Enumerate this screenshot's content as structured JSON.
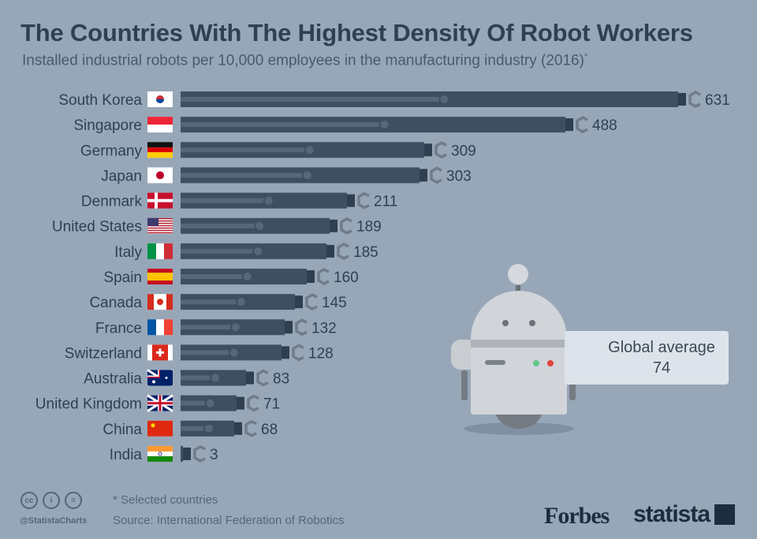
{
  "chart_data": {
    "type": "bar",
    "orientation": "horizontal",
    "title": "The Countries With The Highest Density Of Robot Workers",
    "subtitle": "Installed industrial robots per 10,000 employees in the manufacturing industry (2016)",
    "subtitle_mark": "*",
    "categories": [
      "South Korea",
      "Singapore",
      "Germany",
      "Japan",
      "Denmark",
      "United States",
      "Italy",
      "Spain",
      "Canada",
      "France",
      "Switzerland",
      "Australia",
      "United Kingdom",
      "China",
      "India"
    ],
    "values": [
      631,
      488,
      309,
      303,
      211,
      189,
      185,
      160,
      145,
      132,
      128,
      83,
      71,
      68,
      3
    ],
    "flag_icons": [
      "south-korea-flag-icon",
      "singapore-flag-icon",
      "germany-flag-icon",
      "japan-flag-icon",
      "denmark-flag-icon",
      "united-states-flag-icon",
      "italy-flag-icon",
      "spain-flag-icon",
      "canada-flag-icon",
      "france-flag-icon",
      "switzerland-flag-icon",
      "australia-flag-icon",
      "united-kingdom-flag-icon",
      "china-flag-icon",
      "india-flag-icon"
    ],
    "annotation": {
      "label": "Global average",
      "value": "74"
    },
    "xlim": [
      0,
      631
    ],
    "grid": false,
    "bar_color": "#3d4f61",
    "background_color": "#97a7b8"
  },
  "footer": {
    "note": "* Selected countries",
    "source": "Source: International Federation of Robotics",
    "handle": "@StatistaCharts",
    "license_icons": [
      "cc-icon",
      "by-icon",
      "nd-icon"
    ],
    "cc_labels": [
      "cc",
      "i",
      "="
    ],
    "brands": [
      "Forbes",
      "statista"
    ]
  }
}
